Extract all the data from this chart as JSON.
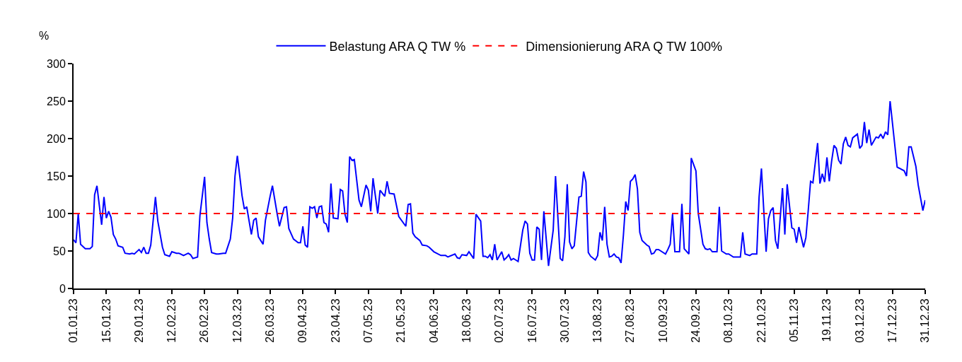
{
  "chart_data": {
    "type": "line",
    "ylabel": "%",
    "xlim": [
      "--01-01",
      "--12-31"
    ],
    "ylim": [
      0,
      300
    ],
    "yticks": [
      0,
      50,
      100,
      150,
      200,
      250,
      300
    ],
    "xticks": [
      {
        "value": "--01-01",
        "label": "01.01.23"
      },
      {
        "value": "--01-15",
        "label": "15.01.23"
      },
      {
        "value": "--01-29",
        "label": "29.01.23"
      },
      {
        "value": "--02-12",
        "label": "12.02.23"
      },
      {
        "value": "--02-26",
        "label": "26.02.23"
      },
      {
        "value": "--03-12",
        "label": "12.03.23"
      },
      {
        "value": "--03-26",
        "label": "26.03.23"
      },
      {
        "value": "--04-09",
        "label": "09.04.23"
      },
      {
        "value": "--04-23",
        "label": "23.04.23"
      },
      {
        "value": "--05-07",
        "label": "07.05.23"
      },
      {
        "value": "--05-21",
        "label": "21.05.23"
      },
      {
        "value": "--06-04",
        "label": "04.06.23"
      },
      {
        "value": "--06-18",
        "label": "18.06.23"
      },
      {
        "value": "--07-02",
        "label": "02.07.23"
      },
      {
        "value": "--07-16",
        "label": "16.07.23"
      },
      {
        "value": "--07-30",
        "label": "30.07.23"
      },
      {
        "value": "--08-13",
        "label": "13.08.23"
      },
      {
        "value": "--08-27",
        "label": "27.08.23"
      },
      {
        "value": "--09-10",
        "label": "10.09.23"
      },
      {
        "value": "--09-24",
        "label": "24.09.23"
      },
      {
        "value": "--10-08",
        "label": "08.10.23"
      },
      {
        "value": "--10-22",
        "label": "22.10.23"
      },
      {
        "value": "--11-05",
        "label": "05.11.23"
      },
      {
        "value": "--11-19",
        "label": "19.11.23"
      },
      {
        "value": "--12-03",
        "label": "03.12.23"
      },
      {
        "value": "--12-17",
        "label": "17.12.23"
      },
      {
        "value": "--12-31",
        "label": "31.12.23"
      }
    ],
    "series": [
      {
        "name": "Belastung ARA Q TW %",
        "color": "#0000ff",
        "x": [
          "--01-01",
          "--01-02",
          "--01-03",
          "--01-04",
          "--01-06",
          "--01-08",
          "--01-09",
          "--01-10",
          "--01-11",
          "--01-13",
          "--01-14",
          "--01-15",
          "--01-16",
          "--01-17",
          "--01-18",
          "--01-19",
          "--01-20",
          "--01-22",
          "--01-23",
          "--01-25",
          "--01-26",
          "--01-27",
          "--01-29",
          "--01-30",
          "--01-31",
          "--02-01",
          "--02-02",
          "--02-03",
          "--02-05",
          "--02-06",
          "--02-08",
          "--02-09",
          "--02-11",
          "--02-12",
          "--02-14",
          "--02-15",
          "--02-17",
          "--02-19",
          "--02-20",
          "--02-21",
          "--02-23",
          "--02-24",
          "--02-26",
          "--02-27",
          "--02-28",
          "--03-01",
          "--03-03",
          "--03-04",
          "--03-06",
          "--03-07",
          "--03-09",
          "--03-10",
          "--03-11",
          "--03-12",
          "--03-13",
          "--03-14",
          "--03-15",
          "--03-16",
          "--03-18",
          "--03-19",
          "--03-20",
          "--03-21",
          "--03-23",
          "--03-24",
          "--03-26",
          "--03-27",
          "--03-29",
          "--03-30",
          "--04-01",
          "--04-02",
          "--04-03",
          "--04-05",
          "--04-07",
          "--04-08",
          "--04-09",
          "--04-10",
          "--04-11",
          "--04-12",
          "--04-13",
          "--04-14",
          "--04-15",
          "--04-16",
          "--04-17",
          "--04-18",
          "--04-19",
          "--04-20",
          "--04-21",
          "--04-22",
          "--04-24",
          "--04-25",
          "--04-26",
          "--04-27",
          "--04-28",
          "--04-29",
          "--04-30",
          "--05-01",
          "--05-03",
          "--05-04",
          "--05-06",
          "--05-07",
          "--05-08",
          "--05-09",
          "--05-11",
          "--05-12",
          "--05-14",
          "--05-15",
          "--05-16",
          "--05-18",
          "--05-20",
          "--05-23",
          "--05-24",
          "--05-25",
          "--05-26",
          "--05-27",
          "--05-29",
          "--05-30",
          "--06-01",
          "--06-02",
          "--06-04",
          "--06-07",
          "--06-09",
          "--06-10",
          "--06-13",
          "--06-14",
          "--06-15",
          "--06-16",
          "--06-18",
          "--06-19",
          "--06-21",
          "--06-22",
          "--06-24",
          "--06-25",
          "--06-26",
          "--06-27",
          "--06-28",
          "--06-29",
          "--06-30",
          "--07-01",
          "--07-03",
          "--07-04",
          "--07-05",
          "--07-06",
          "--07-07",
          "--07-08",
          "--07-09",
          "--07-10",
          "--07-12",
          "--07-13",
          "--07-14",
          "--07-15",
          "--07-16",
          "--07-17",
          "--07-18",
          "--07-19",
          "--07-20",
          "--07-21",
          "--07-23",
          "--07-25",
          "--07-26",
          "--07-28",
          "--07-29",
          "--07-30",
          "--07-31",
          "--08-01",
          "--08-02",
          "--08-03",
          "--08-05",
          "--08-06",
          "--08-07",
          "--08-08",
          "--08-09",
          "--08-10",
          "--08-12",
          "--08-13",
          "--08-14",
          "--08-15",
          "--08-16",
          "--08-17",
          "--08-18",
          "--08-19",
          "--08-20",
          "--08-21",
          "--08-22",
          "--08-23",
          "--08-24",
          "--08-25",
          "--08-26",
          "--08-27",
          "--08-28",
          "--08-29",
          "--08-30",
          "--08-31",
          "--09-01",
          "--09-03",
          "--09-04",
          "--09-05",
          "--09-06",
          "--09-07",
          "--09-08",
          "--09-09",
          "--09-11",
          "--09-12",
          "--09-13",
          "--09-14",
          "--09-15",
          "--09-17",
          "--09-18",
          "--09-19",
          "--09-21",
          "--09-22",
          "--09-24",
          "--09-25",
          "--09-27",
          "--09-28",
          "--09-29",
          "--09-30",
          "--10-01",
          "--10-03",
          "--10-04",
          "--10-05",
          "--10-07",
          "--10-08",
          "--10-10",
          "--10-13",
          "--10-14",
          "--10-15",
          "--10-17",
          "--10-18",
          "--10-20",
          "--10-21",
          "--10-22",
          "--10-23",
          "--10-24",
          "--10-25",
          "--10-26",
          "--10-27",
          "--10-28",
          "--10-29",
          "--10-31",
          "--11-01",
          "--11-02",
          "--11-04",
          "--11-05",
          "--11-06",
          "--11-07",
          "--11-09",
          "--11-10",
          "--11-11",
          "--11-12",
          "--11-13",
          "--11-15",
          "--11-16",
          "--11-17",
          "--11-18",
          "--11-19",
          "--11-20",
          "--11-21",
          "--11-22",
          "--11-23",
          "--11-24",
          "--11-25",
          "--11-26",
          "--11-27",
          "--11-28",
          "--11-29",
          "--11-30",
          "--12-02",
          "--12-03",
          "--12-04",
          "--12-05",
          "--12-06",
          "--12-07",
          "--12-08",
          "--12-10",
          "--12-11",
          "--12-12",
          "--12-13",
          "--12-14",
          "--12-15",
          "--12-16",
          "--12-19",
          "--12-22",
          "--12-23",
          "--12-24",
          "--12-25",
          "--12-27",
          "--12-28",
          "--12-29",
          "--12-30",
          "--12-31"
        ],
        "values": [
          65,
          61,
          100,
          59,
          53,
          53,
          56,
          125,
          137,
          85,
          122,
          94,
          103,
          95,
          72,
          66,
          57,
          55,
          47,
          46,
          47,
          46,
          52,
          48,
          55,
          47,
          47,
          58,
          122,
          90,
          55,
          45,
          43,
          49,
          47,
          47,
          44,
          47,
          45,
          40,
          42,
          97,
          149,
          88,
          66,
          48,
          46,
          46,
          47,
          47,
          66,
          94,
          150,
          177,
          151,
          124,
          106,
          109,
          72,
          91,
          94,
          69,
          59,
          91,
          123,
          137,
          100,
          83,
          108,
          109,
          80,
          66,
          61,
          61,
          83,
          58,
          55,
          109,
          107,
          109,
          94,
          109,
          110,
          88,
          86,
          75,
          140,
          94,
          93,
          132,
          130,
          99,
          88,
          176,
          171,
          172,
          118,
          109,
          138,
          131,
          103,
          147,
          100,
          131,
          123,
          143,
          127,
          126,
          96,
          83,
          112,
          113,
          74,
          69,
          64,
          58,
          57,
          55,
          49,
          44,
          44,
          42,
          46,
          41,
          40,
          45,
          44,
          49,
          40,
          99,
          90,
          43,
          43,
          41,
          45,
          38,
          59,
          38,
          49,
          38,
          41,
          45,
          38,
          40,
          38,
          36,
          78,
          90,
          86,
          47,
          38,
          38,
          82,
          79,
          38,
          103,
          30,
          78,
          150,
          40,
          37,
          69,
          139,
          62,
          53,
          57,
          122,
          123,
          156,
          142,
          48,
          43,
          38,
          44,
          75,
          64,
          109,
          59,
          42,
          43,
          46,
          42,
          41,
          34,
          71,
          116,
          104,
          143,
          146,
          152,
          133,
          75,
          64,
          58,
          56,
          46,
          47,
          52,
          52,
          50,
          46,
          52,
          59,
          99,
          49,
          49,
          113,
          53,
          46,
          174,
          157,
          100,
          59,
          53,
          52,
          53,
          49,
          49,
          109,
          50,
          46,
          46,
          42,
          42,
          75,
          46,
          44,
          46,
          46,
          122,
          160,
          104,
          49,
          93,
          104,
          108,
          64,
          53,
          134,
          72,
          139,
          81,
          79,
          61,
          82,
          55,
          68,
          104,
          143,
          141,
          194,
          140,
          153,
          142,
          175,
          143,
          170,
          191,
          187,
          171,
          166,
          193,
          202,
          191,
          189,
          201,
          206,
          187,
          191,
          222,
          194,
          212,
          191,
          202,
          201,
          206,
          200,
          209,
          205,
          250,
          162,
          157,
          150,
          189,
          189,
          163,
          138,
          121,
          104,
          118
        ]
      }
    ],
    "ref_lines": [
      {
        "axis": "y",
        "value": 100,
        "label": "Dimensionierung ARA Q TW 100%",
        "color": "#ff0000",
        "line_style": "dashed"
      }
    ],
    "legend": "top",
    "grid": false,
    "marker": "none",
    "line_style": "solid"
  }
}
